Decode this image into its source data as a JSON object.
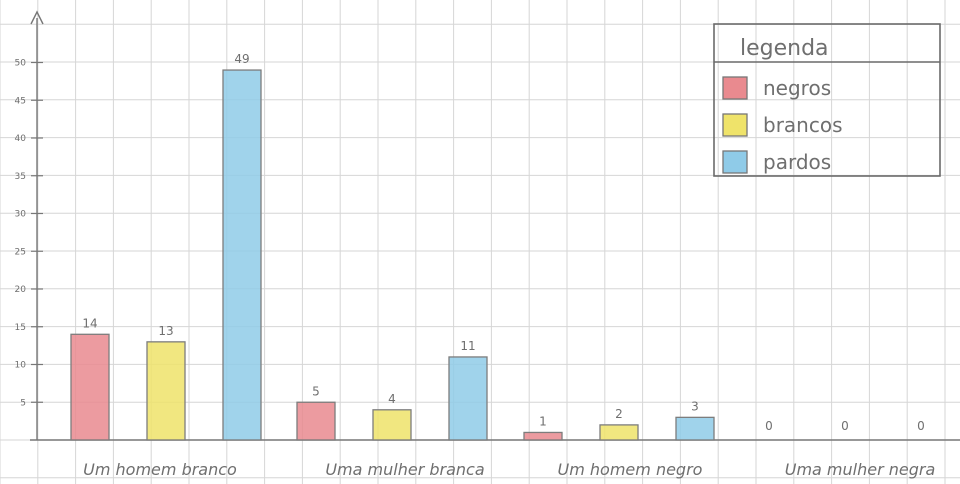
{
  "chart_data": {
    "type": "bar",
    "categories": [
      "Um homem branco",
      "Uma mulher branca",
      "Um homem negro",
      "Uma mulher negra"
    ],
    "series": [
      {
        "name": "negros",
        "color": "#e98a8f",
        "values": [
          14,
          5,
          1,
          0
        ]
      },
      {
        "name": "brancos",
        "color": "#efe36a",
        "values": [
          13,
          4,
          2,
          0
        ]
      },
      {
        "name": "pardos",
        "color": "#8fcbe8",
        "values": [
          49,
          11,
          3,
          0
        ]
      }
    ],
    "data_labels": [
      [
        "14",
        "13",
        "49"
      ],
      [
        "5",
        "4",
        "11"
      ],
      [
        "1",
        "2",
        "3"
      ],
      [
        "0",
        "0",
        "0"
      ]
    ],
    "ylim": [
      0,
      50
    ],
    "yticks": [
      5,
      10,
      15,
      20,
      25,
      30,
      35,
      40,
      45,
      50
    ],
    "ytick_labels": [
      "5",
      "10",
      "15",
      "20",
      "25",
      "30",
      "35",
      "40",
      "45",
      "50"
    ],
    "grid": true,
    "legend": {
      "title": "legenda",
      "position": "top-right"
    }
  }
}
